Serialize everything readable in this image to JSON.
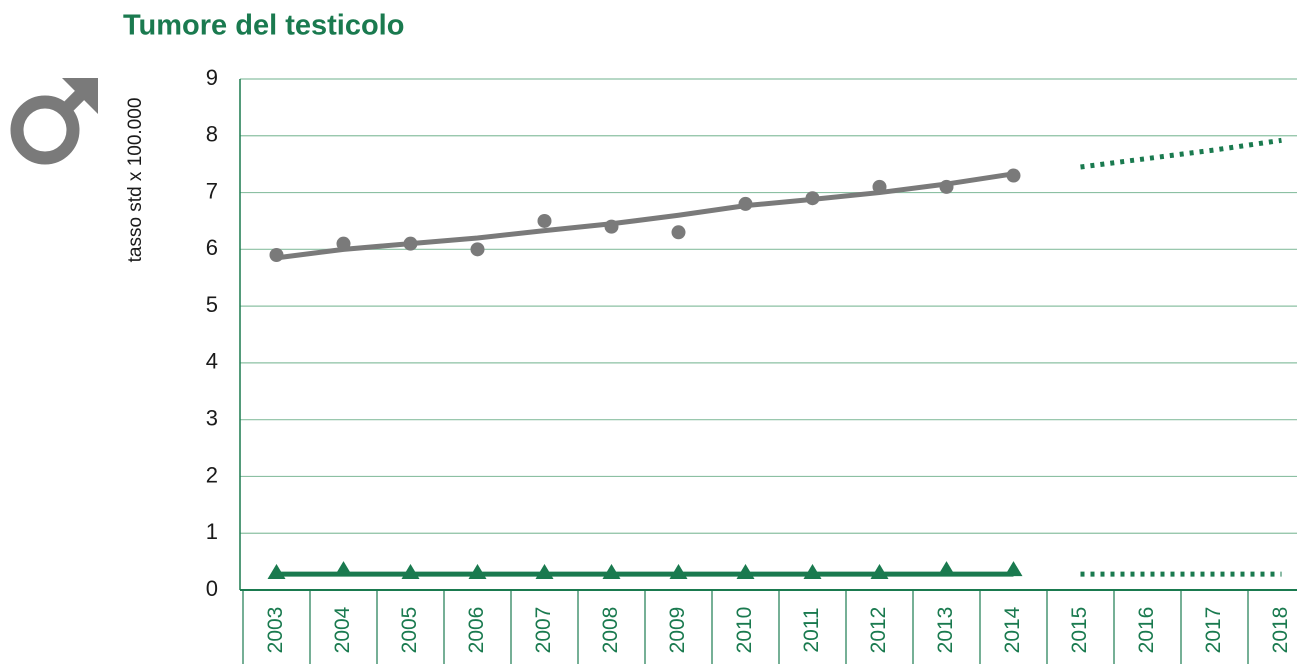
{
  "chart_data": {
    "type": "line",
    "title": "Tumore del testicolo",
    "y_label": "tasso std x 100.000",
    "categories": [
      "2003",
      "2004",
      "2005",
      "2006",
      "2007",
      "2008",
      "2009",
      "2010",
      "2011",
      "2012",
      "2013",
      "2014",
      "2015",
      "2016",
      "2017",
      "2018"
    ],
    "ylim": [
      0,
      9
    ],
    "yticks": [
      0,
      1,
      2,
      3,
      4,
      5,
      6,
      7,
      8,
      9
    ],
    "grid": true,
    "series": [
      {
        "color": "#7a7a7a",
        "marker": "circle",
        "line": false,
        "values": [
          5.9,
          6.1,
          6.1,
          6.0,
          6.5,
          6.4,
          6.3,
          6.8,
          6.9,
          7.1,
          7.1,
          7.3,
          null,
          null,
          null,
          null
        ]
      },
      {
        "color": "#7a7a7a",
        "line": true,
        "dotted": false,
        "values": [
          5.85,
          6.0,
          6.1,
          6.2,
          6.33,
          6.45,
          6.6,
          6.77,
          6.88,
          7.0,
          7.15,
          7.33,
          null,
          null,
          null,
          null
        ]
      },
      {
        "color": "#1a7a4f",
        "line": true,
        "dotted": true,
        "values": [
          null,
          null,
          null,
          null,
          null,
          null,
          null,
          null,
          null,
          null,
          null,
          null,
          7.45,
          7.6,
          7.75,
          7.92
        ]
      },
      {
        "color": "#1a7a4f",
        "marker": "triangle",
        "line": false,
        "values": [
          0.3,
          0.35,
          0.3,
          0.3,
          0.3,
          0.3,
          0.3,
          0.3,
          0.3,
          0.3,
          0.35,
          0.35,
          null,
          null,
          null,
          null
        ]
      },
      {
        "color": "#1a7a4f",
        "line": true,
        "dotted": false,
        "values": [
          0.28,
          0.28,
          0.28,
          0.28,
          0.28,
          0.28,
          0.28,
          0.28,
          0.28,
          0.28,
          0.28,
          0.28,
          null,
          null,
          null,
          null
        ]
      },
      {
        "color": "#1a7a4f",
        "line": true,
        "dotted": true,
        "values": [
          null,
          null,
          null,
          null,
          null,
          null,
          null,
          null,
          null,
          null,
          null,
          null,
          0.28,
          0.28,
          0.28,
          0.28
        ]
      }
    ]
  }
}
